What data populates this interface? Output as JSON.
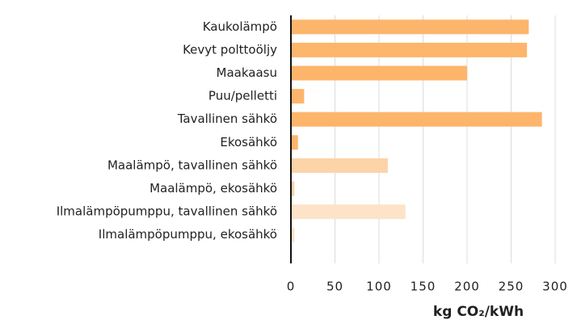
{
  "chart_data": {
    "type": "hbar",
    "categories": [
      "Kaukolämpö",
      "Kevyt polttoöljy",
      "Maakaasu",
      "Puu/pelletti",
      "Tavallinen sähkö",
      "Ekosähkö",
      "Maalämpö, tavallinen sähkö",
      "Maalämpö, ekosähkö",
      "Ilmalämpöpumppu, tavallinen sähkö",
      "Ilmalämpöpumppu, ekosähkö"
    ],
    "values": [
      270,
      268,
      200,
      15,
      285,
      8,
      110,
      4,
      130,
      4
    ],
    "colors": [
      "#fdb56b",
      "#fdb56b",
      "#fdb56b",
      "#fdb56b",
      "#fdb56b",
      "#fdb56b",
      "#fdd3a8",
      "#fdd3a8",
      "#fde4c8",
      "#fde4c8"
    ],
    "xlim": [
      0,
      300
    ],
    "xticks": [
      0,
      50,
      100,
      150,
      200,
      250,
      300
    ],
    "xlabel": "kg CO₂/kWh",
    "grid": true
  }
}
